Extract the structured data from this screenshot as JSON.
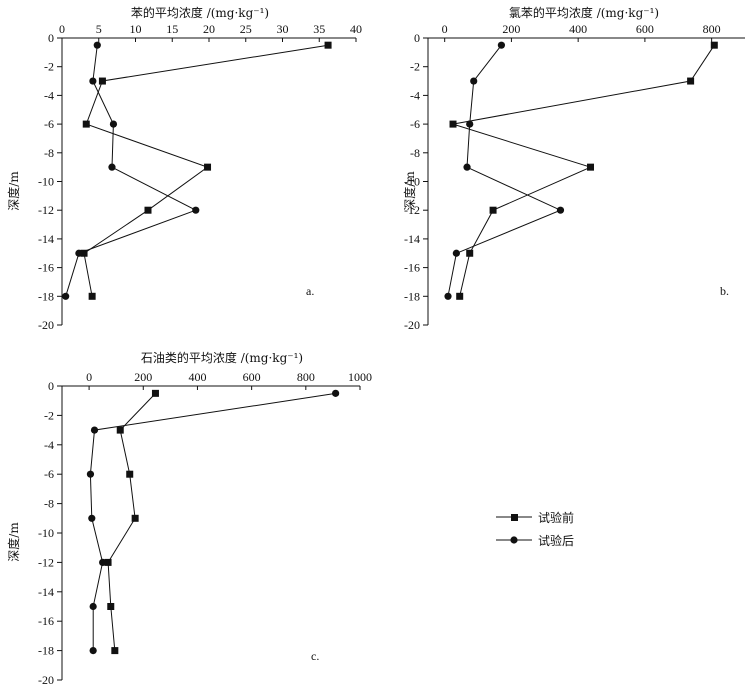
{
  "legend": {
    "items": [
      {
        "label": "试验前",
        "marker": "square"
      },
      {
        "label": "试验后",
        "marker": "circle"
      }
    ]
  },
  "chart_data": [
    {
      "type": "line",
      "title": "苯的平均浓度 /(mg·kg⁻¹)",
      "xlabel": "苯的平均浓度 /(mg·kg⁻¹)",
      "ylabel": "深度/m",
      "panel_label": "a.",
      "xlim": [
        0,
        40
      ],
      "xticks": [
        0,
        5,
        10,
        15,
        20,
        25,
        30,
        35,
        40
      ],
      "ylim": [
        -20,
        0
      ],
      "yticks": [
        0,
        -2,
        -4,
        -6,
        -8,
        -10,
        -12,
        -14,
        -16,
        -18,
        -20
      ],
      "x_axis_position": "top",
      "series": [
        {
          "name": "试验前",
          "marker": "square",
          "points": [
            [
              36.2,
              -0.5
            ],
            [
              5.5,
              -3
            ],
            [
              3.3,
              -6
            ],
            [
              19.8,
              -9
            ],
            [
              11.7,
              -12
            ],
            [
              3,
              -15
            ],
            [
              4.1,
              -18
            ]
          ]
        },
        {
          "name": "试验后",
          "marker": "circle",
          "points": [
            [
              4.8,
              -0.5
            ],
            [
              4.2,
              -3
            ],
            [
              7,
              -6
            ],
            [
              6.8,
              -9
            ],
            [
              18.2,
              -12
            ],
            [
              2.3,
              -15
            ],
            [
              0.5,
              -18
            ]
          ]
        }
      ]
    },
    {
      "type": "line",
      "title": "氯苯的平均浓度 /(mg·kg⁻¹)",
      "xlabel": "氯苯的平均浓度 /(mg·kg⁻¹)",
      "ylabel": "深度/m",
      "panel_label": "b.",
      "xlim": [
        -50,
        900
      ],
      "xticks": [
        0,
        200,
        400,
        600,
        800
      ],
      "ylim": [
        -20,
        0
      ],
      "yticks": [
        0,
        -2,
        -4,
        -6,
        -8,
        -10,
        -12,
        -14,
        -16,
        -18,
        -20
      ],
      "x_axis_position": "top",
      "series": [
        {
          "name": "试验前",
          "marker": "square",
          "points": [
            [
              808,
              -0.5
            ],
            [
              737,
              -3
            ],
            [
              25,
              -6
            ],
            [
              437,
              -9
            ],
            [
              145,
              -12
            ],
            [
              75,
              -15
            ],
            [
              45,
              -18
            ]
          ]
        },
        {
          "name": "试验后",
          "marker": "circle",
          "points": [
            [
              170,
              -0.5
            ],
            [
              87,
              -3
            ],
            [
              75,
              -6
            ],
            [
              67,
              -9
            ],
            [
              347,
              -12
            ],
            [
              35,
              -15
            ],
            [
              10,
              -18
            ]
          ]
        }
      ]
    },
    {
      "type": "line",
      "title": "石油类的平均浓度 /(mg·kg⁻¹)",
      "xlabel": "石油类的平均浓度 /(mg·kg⁻¹)",
      "ylabel": "深度/m",
      "panel_label": "c.",
      "xlim": [
        -100,
        1000
      ],
      "xticks": [
        0,
        200,
        400,
        600,
        800,
        1000
      ],
      "ylim": [
        -20,
        0
      ],
      "yticks": [
        0,
        -2,
        -4,
        -6,
        -8,
        -10,
        -12,
        -14,
        -16,
        -18,
        -20
      ],
      "x_axis_position": "top",
      "series": [
        {
          "name": "试验前",
          "marker": "square",
          "points": [
            [
              245,
              -0.5
            ],
            [
              115,
              -3
            ],
            [
              150,
              -6
            ],
            [
              170,
              -9
            ],
            [
              70,
              -12
            ],
            [
              80,
              -15
            ],
            [
              95,
              -18
            ]
          ]
        },
        {
          "name": "试验后",
          "marker": "circle",
          "points": [
            [
              910,
              -0.5
            ],
            [
              20,
              -3
            ],
            [
              5,
              -6
            ],
            [
              10,
              -9
            ],
            [
              50,
              -12
            ],
            [
              15,
              -15
            ],
            [
              15,
              -18
            ]
          ]
        }
      ]
    }
  ]
}
